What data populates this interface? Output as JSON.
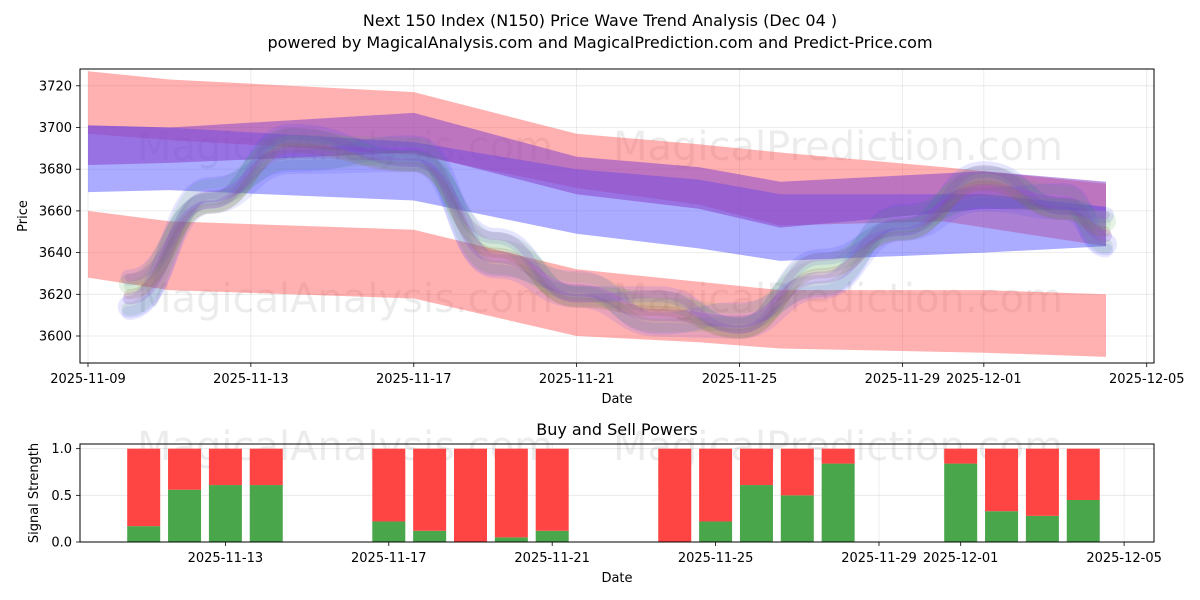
{
  "title_line1": "Next 150 Index (N150) Price Wave Trend Analysis (Dec 04 )",
  "title_line2": "powered by MagicalAnalysis.com and MagicalPrediction.com and Predict-Price.com",
  "watermark_left": "MagicalAnalysis.com",
  "watermark_right": "MagicalPrediction.com",
  "colors": {
    "red": "#ff4444",
    "green": "#4aa64a",
    "blue": "#4444ff",
    "purple": "#8844cc",
    "brown": "#8a6a3a"
  },
  "chart_data": [
    {
      "type": "area",
      "title": "",
      "xlabel": "Date",
      "ylabel": "Price",
      "xlim": [
        "2025-11-09",
        "2025-12-05"
      ],
      "ylim": [
        3587,
        3728
      ],
      "x_ticks": [
        "2025-11-09",
        "2025-11-13",
        "2025-11-17",
        "2025-11-21",
        "2025-11-25",
        "2025-11-29",
        "2025-12-01",
        "2025-12-05"
      ],
      "y_ticks": [
        3600,
        3620,
        3640,
        3660,
        3680,
        3700,
        3720
      ],
      "grid": true,
      "series": [
        {
          "name": "red upper band",
          "color": "red",
          "x": [
            "2025-11-09",
            "2025-11-11",
            "2025-11-17",
            "2025-11-21",
            "2025-11-24",
            "2025-11-26",
            "2025-11-30",
            "2025-12-04"
          ],
          "upper": [
            3727,
            3723,
            3717,
            3697,
            3692,
            3688,
            3681,
            3673
          ],
          "lower": [
            3697,
            3694,
            3687,
            3671,
            3663,
            3653,
            3655,
            3643
          ]
        },
        {
          "name": "red lower band",
          "color": "red",
          "x": [
            "2025-11-09",
            "2025-11-11",
            "2025-11-17",
            "2025-11-21",
            "2025-11-24",
            "2025-11-26",
            "2025-12-01",
            "2025-12-04"
          ],
          "upper": [
            3660,
            3655,
            3651,
            3632,
            3626,
            3622,
            3622,
            3620
          ],
          "lower": [
            3628,
            3622,
            3618,
            3600,
            3597,
            3594,
            3592,
            3590
          ]
        },
        {
          "name": "blue band",
          "color": "blue",
          "x": [
            "2025-11-09",
            "2025-11-11",
            "2025-11-17",
            "2025-11-21",
            "2025-11-24",
            "2025-11-26",
            "2025-12-01",
            "2025-12-04"
          ],
          "upper": [
            3701,
            3700,
            3693,
            3680,
            3675,
            3668,
            3668,
            3662
          ],
          "lower": [
            3669,
            3670,
            3665,
            3649,
            3642,
            3636,
            3640,
            3643
          ]
        },
        {
          "name": "purple band",
          "color": "purple",
          "x": [
            "2025-11-09",
            "2025-11-11",
            "2025-11-17",
            "2025-11-21",
            "2025-11-24",
            "2025-11-26",
            "2025-12-01",
            "2025-12-04"
          ],
          "upper": [
            3701,
            3700,
            3707,
            3686,
            3681,
            3674,
            3679,
            3674
          ],
          "lower": [
            3682,
            3683,
            3688,
            3668,
            3661,
            3652,
            3661,
            3660
          ]
        },
        {
          "name": "wave paths",
          "color": "mixed",
          "x": [
            "2025-11-10",
            "2025-11-12",
            "2025-11-14",
            "2025-11-17",
            "2025-11-19",
            "2025-11-21",
            "2025-11-23",
            "2025-11-25",
            "2025-11-27",
            "2025-11-29",
            "2025-12-01",
            "2025-12-03",
            "2025-12-04"
          ],
          "values": [
            3620,
            3665,
            3690,
            3685,
            3640,
            3620,
            3612,
            3605,
            3630,
            3652,
            3672,
            3662,
            3650
          ]
        }
      ]
    },
    {
      "type": "bar",
      "title": "Buy and Sell Powers",
      "xlabel": "Date",
      "ylabel": "Signal Strength",
      "ylim": [
        0,
        1.05
      ],
      "y_ticks": [
        0.0,
        0.5,
        1.0
      ],
      "y_tick_labels": [
        "0.0",
        "0.5",
        "1.0"
      ],
      "x_ticks": [
        "2025-11-13",
        "2025-11-17",
        "2025-11-21",
        "2025-11-25",
        "2025-11-29",
        "2025-12-01",
        "2025-12-05"
      ],
      "categories": [
        "2025-11-11",
        "2025-11-12",
        "2025-11-13",
        "2025-11-14",
        "2025-11-17",
        "2025-11-18",
        "2025-11-19",
        "2025-11-20",
        "2025-11-21",
        "2025-11-24",
        "2025-11-25",
        "2025-11-26",
        "2025-11-27",
        "2025-11-28",
        "2025-12-01",
        "2025-12-02",
        "2025-12-03",
        "2025-12-04"
      ],
      "series": [
        {
          "name": "Buy",
          "color": "green",
          "values": [
            0.17,
            0.56,
            0.61,
            0.61,
            0.22,
            0.12,
            0.0,
            0.05,
            0.12,
            0.0,
            0.22,
            0.61,
            0.5,
            0.84,
            0.84,
            0.33,
            0.28,
            0.45
          ]
        },
        {
          "name": "Sell",
          "color": "red",
          "values": [
            0.83,
            0.44,
            0.39,
            0.39,
            0.78,
            0.88,
            1.0,
            0.95,
            0.88,
            1.0,
            0.78,
            0.39,
            0.5,
            0.16,
            0.16,
            0.67,
            0.72,
            0.55
          ]
        }
      ]
    }
  ]
}
